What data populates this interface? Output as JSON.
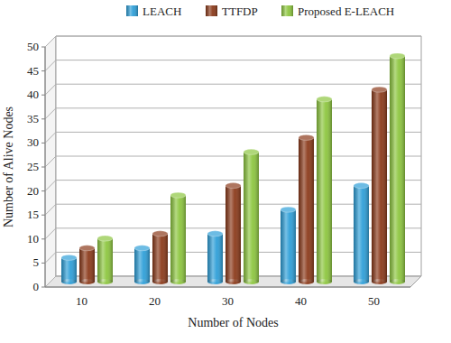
{
  "chart_data": {
    "type": "bar",
    "xlabel": "Number of Nodes",
    "ylabel": "Number of Alive Nodes",
    "categories": [
      "10",
      "20",
      "30",
      "40",
      "50"
    ],
    "series": [
      {
        "name": "LEACH",
        "color": "#2e9fd8",
        "values": [
          5,
          7,
          10,
          15,
          20
        ]
      },
      {
        "name": "TTFDP",
        "color": "#8b3a1a",
        "values": [
          7,
          10,
          20,
          30,
          40
        ]
      },
      {
        "name": "Proposed E-LEACH",
        "color": "#8dc63f",
        "values": [
          9,
          18,
          27,
          38,
          47
        ]
      }
    ],
    "ylim": [
      0,
      50
    ],
    "yticks": [
      0,
      5,
      10,
      15,
      20,
      25,
      30,
      35,
      40,
      45,
      50
    ],
    "grid": true,
    "legend": "top"
  }
}
